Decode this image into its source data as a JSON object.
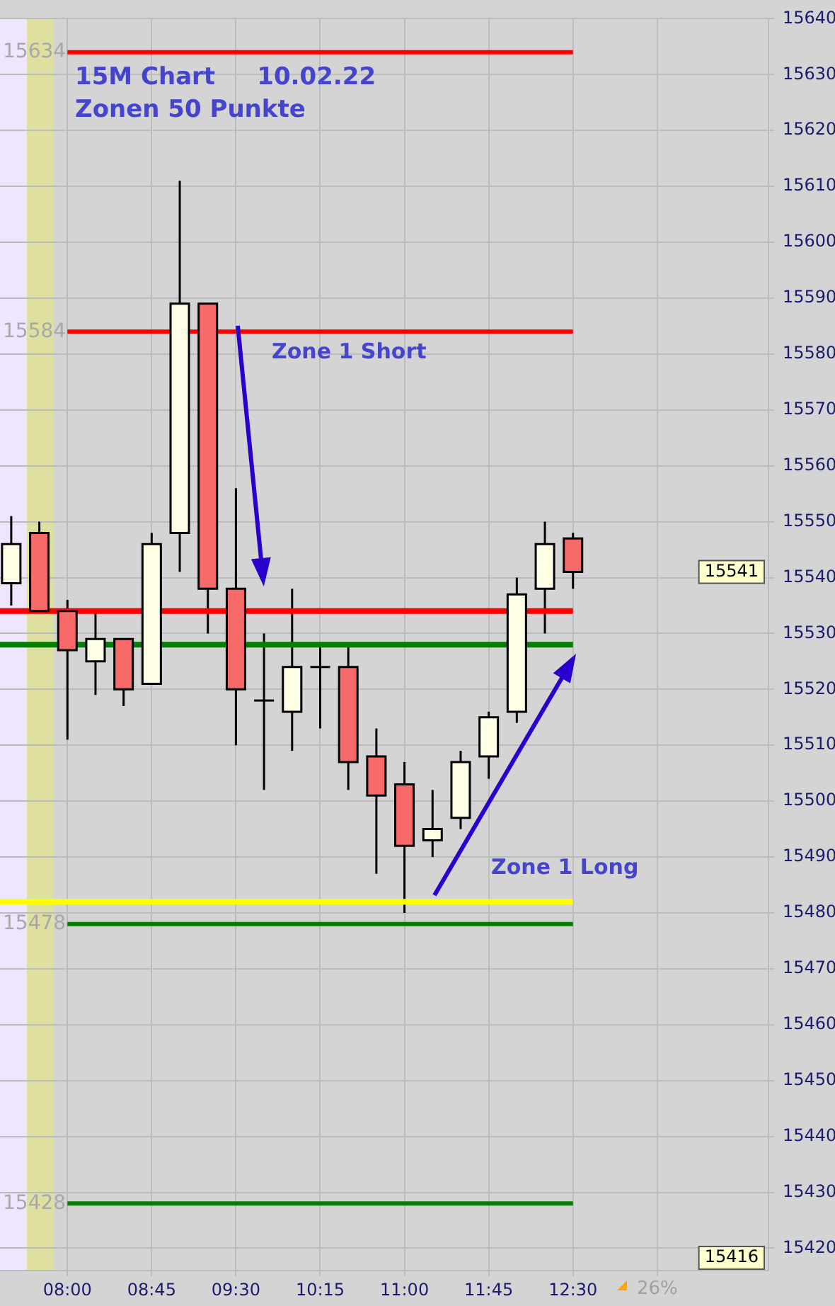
{
  "chart_data": {
    "type": "candlestick",
    "title": "15M Chart     10.02.22",
    "subtitle": "Zonen 50 Punkte",
    "x": [
      7.5,
      7.75,
      8,
      8.25,
      8.5,
      8.75,
      9,
      9.25,
      9.5,
      9.75,
      10,
      10.25,
      10.5,
      10.75,
      11,
      11.25,
      11.5,
      11.75,
      12,
      12.25,
      12.5
    ],
    "ohlc": [
      [
        15539,
        15551,
        15535,
        15546
      ],
      [
        15548,
        15550,
        15534,
        15534
      ],
      [
        15534,
        15536,
        15511,
        15527
      ],
      [
        15525,
        15534,
        15519,
        15529
      ],
      [
        15529,
        15529,
        15517,
        15520
      ],
      [
        15521,
        15548,
        15521,
        15546
      ],
      [
        15548,
        15611,
        15541,
        15589
      ],
      [
        15589,
        15589,
        15530,
        15538
      ],
      [
        15538,
        15556,
        15510,
        15520
      ],
      [
        15518,
        15530,
        15502,
        15518
      ],
      [
        15516,
        15538,
        15509,
        15524
      ],
      [
        15524,
        15528,
        15513,
        15524
      ],
      [
        15524,
        15528,
        15502,
        15507
      ],
      [
        15508,
        15513,
        15487,
        15501
      ],
      [
        15503,
        15507,
        15480,
        15492
      ],
      [
        15493,
        15502,
        15490,
        15495
      ],
      [
        15497,
        15509,
        15495,
        15507
      ],
      [
        15508,
        15516,
        15504,
        15515
      ],
      [
        15516,
        15540,
        15514,
        15537
      ],
      [
        15538,
        15550,
        15530,
        15546
      ],
      [
        15547,
        15548,
        15538,
        15541
      ]
    ],
    "colors": [
      "#ffffe6",
      "#f86a6a",
      "#f86a6a",
      "#ffffe6",
      "#f86a6a",
      "#ffffe6",
      "#ffffe6",
      "#f86a6a",
      "#f86a6a",
      "#ffffe6",
      "#ffffe6",
      "#ffffe6",
      "#f86a6a",
      "#f86a6a",
      "#f86a6a",
      "#ffffe6",
      "#ffffe6",
      "#ffffe6",
      "#ffffe6",
      "#ffffe6",
      "#f86a6a"
    ],
    "xlim": [
      7.4,
      14.24
    ],
    "xticks": [
      {
        "value": 8,
        "label": "08:00"
      },
      {
        "value": 8.75,
        "label": "08:45"
      },
      {
        "value": 9.5,
        "label": "09:30"
      },
      {
        "value": 10.25,
        "label": "10:15"
      },
      {
        "value": 11,
        "label": "11:00"
      },
      {
        "value": 11.75,
        "label": "11:45"
      },
      {
        "value": 12.5,
        "label": "12:30"
      },
      {
        "value": 13.25,
        "label": null
      }
    ],
    "ylim": [
      15416,
      15640
    ],
    "yticks": [
      15420,
      15430,
      15440,
      15450,
      15460,
      15470,
      15480,
      15490,
      15500,
      15510,
      15520,
      15530,
      15540,
      15550,
      15560,
      15570,
      15580,
      15590,
      15600,
      15610,
      15620,
      15630,
      15640
    ],
    "grid": true,
    "ref_lines": [
      {
        "axis": "y",
        "value": 15634,
        "label": "15634",
        "color": "#ff0000"
      },
      {
        "axis": "y",
        "value": 15584,
        "label": "15584",
        "color": "#ff0000"
      },
      {
        "axis": "y",
        "value": 15534,
        "label": null,
        "color": "#ff0000"
      },
      {
        "axis": "y",
        "value": 15528,
        "label": null,
        "color": "#007f00"
      },
      {
        "axis": "y",
        "value": 15482,
        "label": null,
        "color": "#ffff00"
      },
      {
        "axis": "y",
        "value": 15478,
        "label": "15478",
        "color": "#007f00"
      },
      {
        "axis": "y",
        "value": 15428,
        "label": "15428",
        "color": "#007f00"
      }
    ],
    "bands": [
      {
        "axis": "x",
        "from": 7.4,
        "to": 7.64,
        "label": null,
        "color": "#eee6ff"
      },
      {
        "axis": "x",
        "from": 7.64,
        "to": 7.88,
        "label": null,
        "color": "#dfdfa0"
      }
    ],
    "annotations": [
      "Zone 1 Short",
      "Zone 1 Long",
      "15541",
      "15416",
      "26%"
    ]
  }
}
